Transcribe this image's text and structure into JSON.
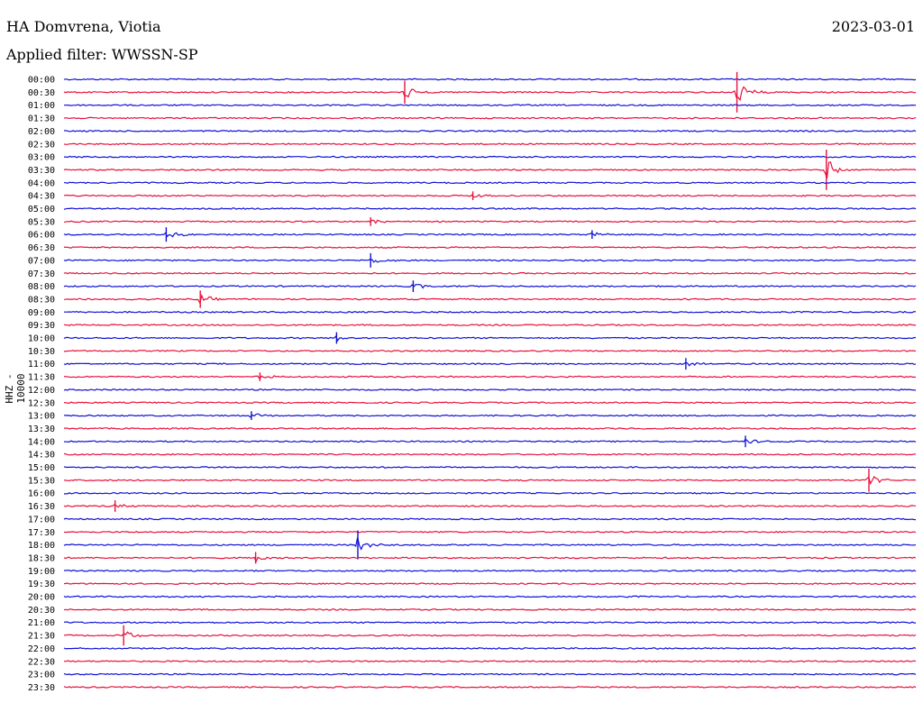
{
  "header": {
    "station": "HA Domvrena, Viotia",
    "date": "2023-03-01",
    "filter": "Applied filter: WWSSN-SP",
    "channel": "HHZ - 10000"
  },
  "colors": {
    "blue": "#1010d8",
    "red": "#e8103c"
  },
  "chart_data": {
    "type": "line",
    "title": "HA Domvrena, Viotia",
    "subtitle": "Applied filter: WWSSN-SP",
    "ylabel": "HHZ - 10000",
    "row_labels": [
      "00:00",
      "00:30",
      "01:00",
      "01:30",
      "02:00",
      "02:30",
      "03:00",
      "03:30",
      "04:00",
      "04:30",
      "05:00",
      "05:30",
      "06:00",
      "06:30",
      "07:00",
      "07:30",
      "08:00",
      "08:30",
      "09:00",
      "09:30",
      "10:00",
      "10:30",
      "11:00",
      "11:30",
      "12:00",
      "12:30",
      "13:00",
      "13:30",
      "14:00",
      "14:30",
      "15:00",
      "15:30",
      "16:00",
      "16:30",
      "17:00",
      "17:30",
      "18:00",
      "18:30",
      "19:00",
      "19:30",
      "20:00",
      "20:30",
      "21:00",
      "21:30",
      "22:00",
      "22:30",
      "23:00",
      "23:30"
    ],
    "row_colors": [
      "blue",
      "red"
    ],
    "events": [
      {
        "row": "00:30",
        "at": 0.4,
        "amp": 8
      },
      {
        "row": "00:30",
        "at": 0.79,
        "amp": 14
      },
      {
        "row": "03:30",
        "at": 0.895,
        "amp": 14
      },
      {
        "row": "04:30",
        "at": 0.48,
        "amp": 3
      },
      {
        "row": "05:30",
        "at": 0.36,
        "amp": 3
      },
      {
        "row": "06:00",
        "at": 0.12,
        "amp": 5
      },
      {
        "row": "06:00",
        "at": 0.62,
        "amp": 3
      },
      {
        "row": "07:00",
        "at": 0.36,
        "amp": 5
      },
      {
        "row": "08:00",
        "at": 0.41,
        "amp": 4
      },
      {
        "row": "08:30",
        "at": 0.16,
        "amp": 6
      },
      {
        "row": "10:00",
        "at": 0.32,
        "amp": 4
      },
      {
        "row": "11:00",
        "at": 0.73,
        "amp": 4
      },
      {
        "row": "11:30",
        "at": 0.23,
        "amp": 3
      },
      {
        "row": "13:00",
        "at": 0.22,
        "amp": 3
      },
      {
        "row": "14:00",
        "at": 0.8,
        "amp": 4
      },
      {
        "row": "15:30",
        "at": 0.945,
        "amp": 8
      },
      {
        "row": "16:30",
        "at": 0.06,
        "amp": 4
      },
      {
        "row": "18:00",
        "at": 0.345,
        "amp": 10
      },
      {
        "row": "18:30",
        "at": 0.225,
        "amp": 4
      },
      {
        "row": "21:30",
        "at": 0.07,
        "amp": 7
      }
    ]
  }
}
